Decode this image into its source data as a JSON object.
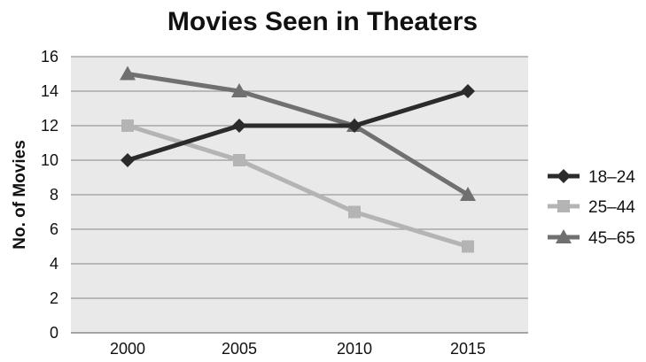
{
  "chart_data": {
    "type": "line",
    "title": "Movies Seen in Theaters",
    "xlabel": "",
    "ylabel": "No. of Movies",
    "categories": [
      "2000",
      "2005",
      "2010",
      "2015"
    ],
    "yticks": [
      "0",
      "2",
      "4",
      "6",
      "8",
      "10",
      "12",
      "14",
      "16"
    ],
    "ylim": [
      0,
      16
    ],
    "grid": true,
    "legend_position": "right",
    "series": [
      {
        "name": "18–24",
        "values": [
          10,
          12,
          12,
          14
        ],
        "color": "#2b2b2b",
        "marker": "diamond"
      },
      {
        "name": "25–44",
        "values": [
          12,
          10,
          7,
          5
        ],
        "color": "#b4b4b4",
        "marker": "square"
      },
      {
        "name": "45–65",
        "values": [
          15,
          14,
          12,
          8
        ],
        "color": "#707070",
        "marker": "triangle"
      }
    ]
  }
}
